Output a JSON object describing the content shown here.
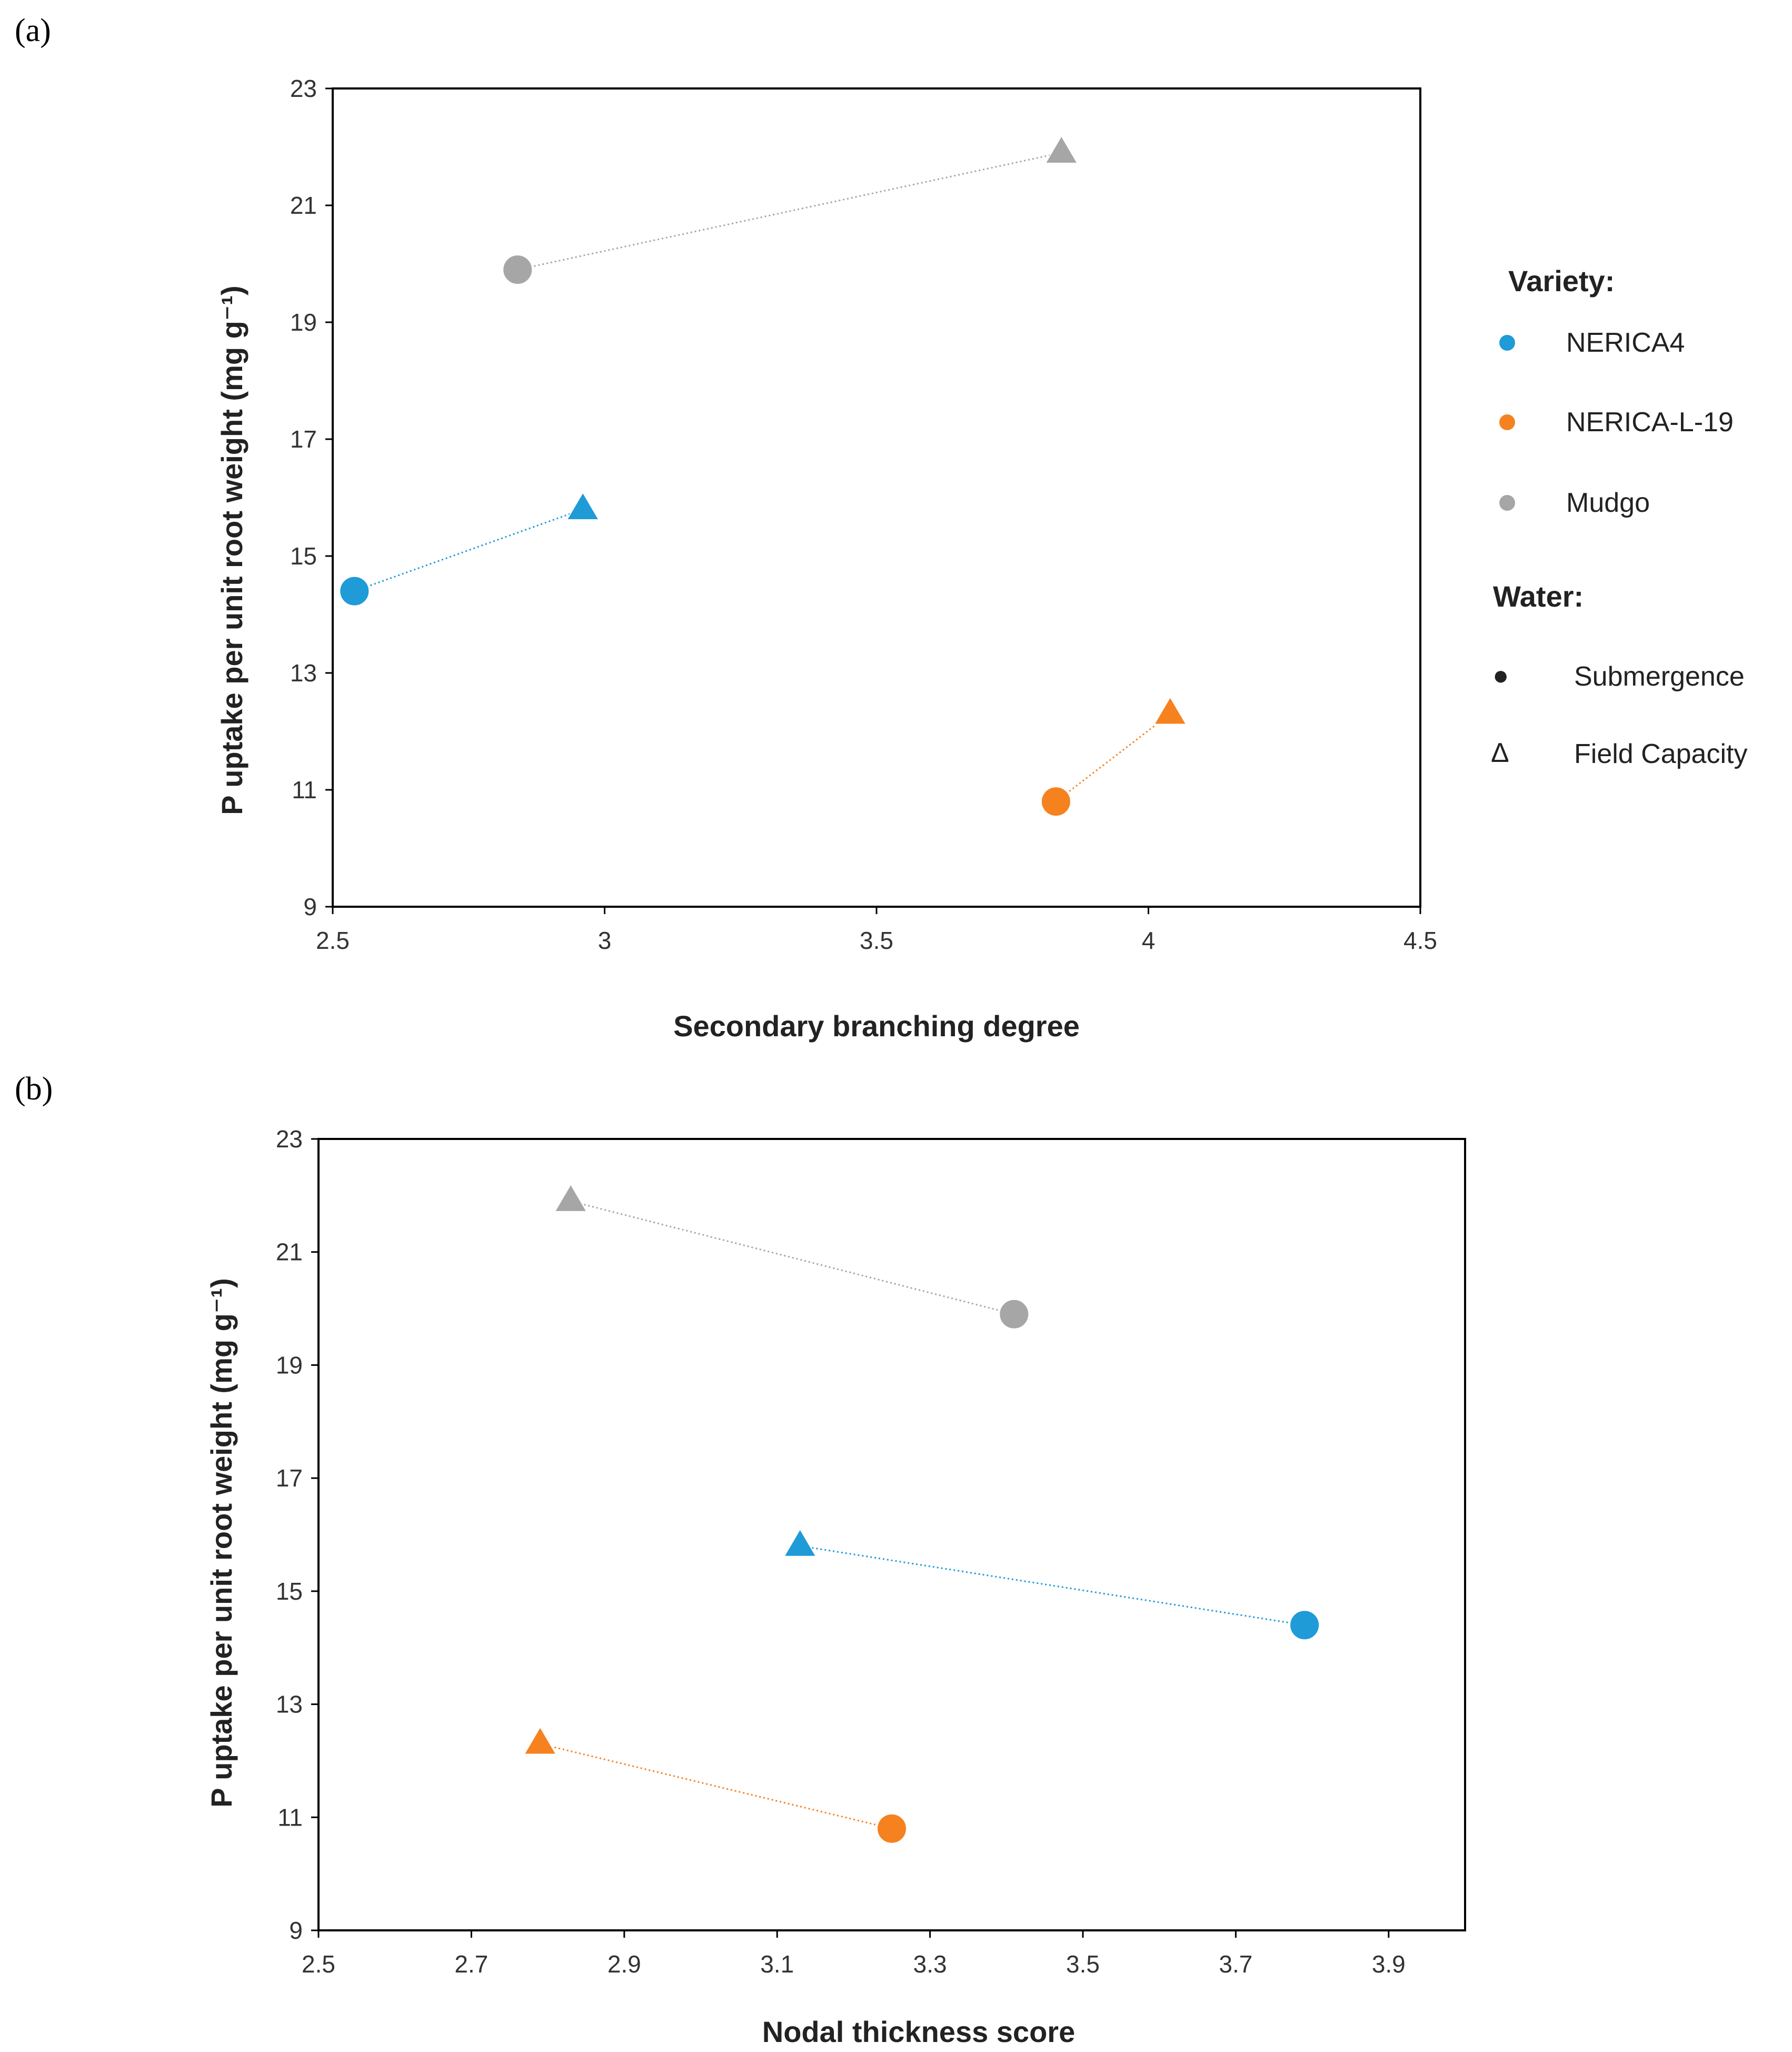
{
  "chart_data": [
    {
      "panel_label": "(a)",
      "type": "scatter",
      "xlabel": "Secondary branching degree",
      "ylabel": "P uptake per unit root weight (mg g⁻¹)",
      "xlim": [
        2.5,
        4.5
      ],
      "ylim": [
        9,
        23
      ],
      "xticks": [
        2.5,
        3,
        3.5,
        4,
        4.5
      ],
      "xtick_labels": [
        "2.5",
        "3",
        "3.5",
        "4",
        "4.5"
      ],
      "yticks": [
        9,
        11,
        13,
        15,
        17,
        19,
        21,
        23
      ],
      "ytick_labels": [
        "9",
        "11",
        "13",
        "15",
        "17",
        "19",
        "21",
        "23"
      ],
      "grid": false,
      "series": [
        {
          "name": "NERICA4",
          "color": "#1f9bd7",
          "points": [
            {
              "water": "Submergence",
              "x": 2.54,
              "y": 14.4
            },
            {
              "water": "Field Capacity",
              "x": 2.96,
              "y": 15.8
            }
          ]
        },
        {
          "name": "NERICA-L-19",
          "color": "#f5821f",
          "points": [
            {
              "water": "Submergence",
              "x": 3.83,
              "y": 10.8
            },
            {
              "water": "Field Capacity",
              "x": 4.04,
              "y": 12.3
            }
          ]
        },
        {
          "name": "Mudgo",
          "color": "#a6a6a6",
          "points": [
            {
              "water": "Submergence",
              "x": 2.84,
              "y": 19.9
            },
            {
              "water": "Field Capacity",
              "x": 3.84,
              "y": 21.9
            }
          ]
        }
      ]
    },
    {
      "panel_label": "(b)",
      "type": "scatter",
      "xlabel": "Nodal thickness score",
      "ylabel": "P uptake per unit root weight (mg g⁻¹)",
      "xlim": [
        2.5,
        4.0
      ],
      "ylim": [
        9,
        23
      ],
      "xticks": [
        2.5,
        2.7,
        2.9,
        3.1,
        3.3,
        3.5,
        3.7,
        3.9
      ],
      "xtick_labels": [
        "2.5",
        "2.7",
        "2.9",
        "3.1",
        "3.3",
        "3.5",
        "3.7",
        "3.9"
      ],
      "yticks": [
        9,
        11,
        13,
        15,
        17,
        19,
        21,
        23
      ],
      "ytick_labels": [
        "9",
        "11",
        "13",
        "15",
        "17",
        "19",
        "21",
        "23"
      ],
      "grid": false,
      "series": [
        {
          "name": "NERICA4",
          "color": "#1f9bd7",
          "points": [
            {
              "water": "Submergence",
              "x": 3.79,
              "y": 14.4
            },
            {
              "water": "Field Capacity",
              "x": 3.13,
              "y": 15.8
            }
          ]
        },
        {
          "name": "NERICA-L-19",
          "color": "#f5821f",
          "points": [
            {
              "water": "Submergence",
              "x": 3.25,
              "y": 10.8
            },
            {
              "water": "Field Capacity",
              "x": 2.79,
              "y": 12.3
            }
          ]
        },
        {
          "name": "Mudgo",
          "color": "#a6a6a6",
          "points": [
            {
              "water": "Submergence",
              "x": 3.41,
              "y": 19.9
            },
            {
              "water": "Field Capacity",
              "x": 2.83,
              "y": 21.9
            }
          ]
        }
      ]
    }
  ],
  "legend": {
    "variety_title": "Variety:",
    "varieties": [
      {
        "label": "NERICA4",
        "color": "#1f9bd7"
      },
      {
        "label": "NERICA-L-19",
        "color": "#f5821f"
      },
      {
        "label": "Mudgo",
        "color": "#a6a6a6"
      }
    ],
    "water_title": "Water:",
    "water": [
      {
        "symbol": "●",
        "label": "Submergence"
      },
      {
        "symbol": "Δ",
        "label": "Field Capacity"
      }
    ]
  }
}
